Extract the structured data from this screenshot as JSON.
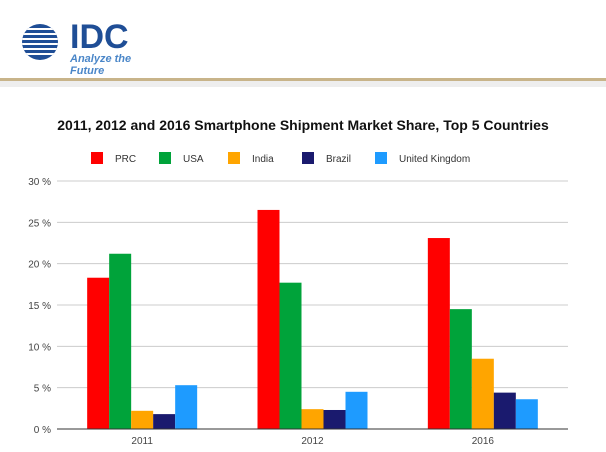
{
  "header": {
    "logo_text": "IDC",
    "tagline": "Analyze the Future"
  },
  "chart_data": {
    "type": "bar",
    "title": "2011, 2012 and 2016 Smartphone Shipment Market Share, Top 5 Countries",
    "xlabel": "",
    "ylabel": "",
    "categories": [
      "2011",
      "2012",
      "2016"
    ],
    "series": [
      {
        "name": "PRC",
        "color": "#ff0000",
        "values": [
          18.3,
          26.5,
          23.1
        ]
      },
      {
        "name": "USA",
        "color": "#00a33a",
        "values": [
          21.2,
          17.7,
          14.5
        ]
      },
      {
        "name": "India",
        "color": "#ffa500",
        "values": [
          2.2,
          2.4,
          8.5
        ]
      },
      {
        "name": "Brazil",
        "color": "#1a1a6e",
        "values": [
          1.8,
          2.3,
          4.4
        ]
      },
      {
        "name": "United Kingdom",
        "color": "#1e9bff",
        "values": [
          5.3,
          4.5,
          3.6
        ]
      }
    ],
    "ylim": [
      0,
      30
    ],
    "yticks": [
      0,
      5,
      10,
      15,
      20,
      25,
      30
    ],
    "ytick_labels": [
      "0 %",
      "5 %",
      "10 %",
      "15 %",
      "20 %",
      "25 %",
      "30 %"
    ],
    "grid": true,
    "legend_position": "top"
  }
}
